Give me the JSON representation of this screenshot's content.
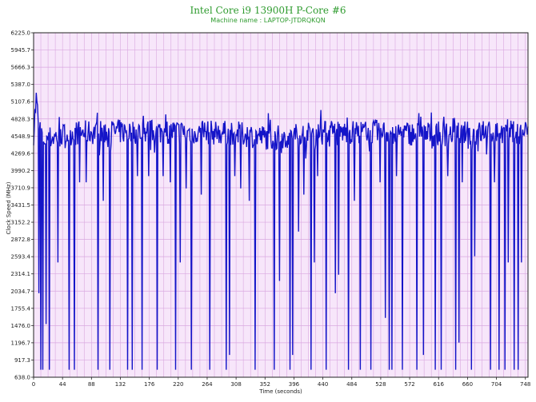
{
  "chart_data": {
    "type": "line",
    "title": "Intel Core i9 13900H P-Core #6",
    "subtitle": "Machine name : LAPTOP-JTDRQKQN",
    "xlabel": "Time (seconds)",
    "ylabel": "Clock Speed (MHz)",
    "xlim": [
      0,
      752
    ],
    "ylim": [
      638.0,
      6225.0
    ],
    "x_ticks": [
      "0",
      "44",
      "88",
      "132",
      "176",
      "220",
      "264",
      "308",
      "352",
      "396",
      "440",
      "484",
      "528",
      "572",
      "616",
      "660",
      "704",
      "748"
    ],
    "y_ticks": [
      "638.0",
      "917.3",
      "1196.7",
      "1476.0",
      "1755.4",
      "2034.7",
      "2314.1",
      "2593.4",
      "2872.8",
      "3152.2",
      "3431.5",
      "3710.9",
      "3990.2",
      "4269.6",
      "4548.9",
      "4828.3",
      "5107.6",
      "5387.0",
      "5666.3",
      "5945.7",
      "6225.0"
    ],
    "grid": true,
    "colors": {
      "line": "#1414c8",
      "plot_bg": "#f7e6fa",
      "grid": "#d9a8e0",
      "title": "#2e9b2e"
    },
    "series": [
      {
        "baseline": [
          [
            0,
            4600
          ],
          [
            4,
            5150
          ],
          [
            8,
            4700
          ],
          [
            16,
            4500
          ],
          [
            40,
            4550
          ],
          [
            60,
            4600
          ],
          [
            120,
            4620
          ],
          [
            200,
            4620
          ],
          [
            300,
            4600
          ],
          [
            360,
            4520
          ],
          [
            440,
            4600
          ],
          [
            520,
            4620
          ],
          [
            600,
            4580
          ],
          [
            700,
            4600
          ],
          [
            752,
            4620
          ]
        ],
        "dips": [
          [
            8,
            2000
          ],
          [
            11,
            760
          ],
          [
            14,
            760
          ],
          [
            19,
            1500
          ],
          [
            24,
            760
          ],
          [
            37,
            2500
          ],
          [
            54,
            760
          ],
          [
            62,
            760
          ],
          [
            70,
            3800
          ],
          [
            80,
            3800
          ],
          [
            98,
            760
          ],
          [
            106,
            3500
          ],
          [
            116,
            760
          ],
          [
            143,
            760
          ],
          [
            150,
            760
          ],
          [
            158,
            3900
          ],
          [
            165,
            760
          ],
          [
            175,
            3900
          ],
          [
            188,
            760
          ],
          [
            197,
            3900
          ],
          [
            208,
            3800
          ],
          [
            216,
            760
          ],
          [
            223,
            2500
          ],
          [
            232,
            3700
          ],
          [
            240,
            760
          ],
          [
            255,
            3600
          ],
          [
            268,
            760
          ],
          [
            293,
            760
          ],
          [
            298,
            1000
          ],
          [
            306,
            3900
          ],
          [
            315,
            3700
          ],
          [
            328,
            3500
          ],
          [
            337,
            760
          ],
          [
            366,
            760
          ],
          [
            374,
            2200
          ],
          [
            390,
            760
          ],
          [
            394,
            1000
          ],
          [
            403,
            3000
          ],
          [
            411,
            3600
          ],
          [
            422,
            760
          ],
          [
            427,
            2500
          ],
          [
            432,
            3900
          ],
          [
            445,
            760
          ],
          [
            459,
            2000
          ],
          [
            464,
            2300
          ],
          [
            479,
            760
          ],
          [
            488,
            3500
          ],
          [
            497,
            760
          ],
          [
            513,
            760
          ],
          [
            527,
            3800
          ],
          [
            535,
            1600
          ],
          [
            541,
            760
          ],
          [
            545,
            760
          ],
          [
            552,
            3900
          ],
          [
            561,
            760
          ],
          [
            583,
            760
          ],
          [
            593,
            1000
          ],
          [
            611,
            760
          ],
          [
            620,
            760
          ],
          [
            630,
            3900
          ],
          [
            642,
            760
          ],
          [
            647,
            1200
          ],
          [
            652,
            3800
          ],
          [
            666,
            760
          ],
          [
            671,
            2600
          ],
          [
            695,
            760
          ],
          [
            701,
            3800
          ],
          [
            708,
            760
          ],
          [
            717,
            760
          ],
          [
            722,
            2500
          ],
          [
            731,
            760
          ],
          [
            737,
            760
          ],
          [
            742,
            2500
          ]
        ]
      }
    ]
  }
}
